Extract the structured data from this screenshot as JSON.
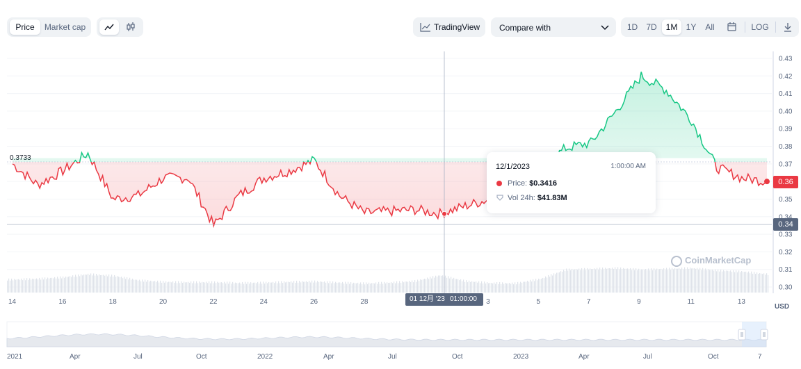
{
  "toolbar": {
    "price_tab": "Price",
    "market_cap_tab": "Market cap",
    "line_chart_icon": "line-chart-icon",
    "candlestick_icon": "candlestick-icon",
    "tradingview_label": "TradingView",
    "compare_label": "Compare with",
    "ranges": [
      "1D",
      "7D",
      "1M",
      "1Y",
      "All"
    ],
    "active_range": "1M",
    "log_label": "LOG"
  },
  "chart": {
    "currency_label": "USD",
    "reference_price": "0.3733",
    "current_price_tag": "0.36",
    "crosshair_price_tag": "0.34",
    "y_ticks": [
      "0.43",
      "0.42",
      "0.41",
      "0.40",
      "0.39",
      "0.38",
      "0.37",
      "0.36",
      "0.35",
      "0.34",
      "0.33",
      "0.32",
      "0.31",
      "0.30"
    ],
    "x_ticks": [
      "14",
      "16",
      "18",
      "20",
      "22",
      "24",
      "26",
      "28",
      "3",
      "5",
      "7",
      "9",
      "11",
      "13"
    ],
    "crosshair_date": "01 12月 '23",
    "crosshair_time": "01:00:00",
    "watermark": "CoinMarketCap",
    "colors": {
      "up": "#16c784",
      "down": "#ea3943",
      "axis": "#58667e"
    }
  },
  "tooltip": {
    "date": "12/1/2023",
    "time": "1:00:00 AM",
    "price_label": "Price:",
    "price_value": "$0.3416",
    "volume_label": "Vol 24h:",
    "volume_value": "$41.83M"
  },
  "navigator": {
    "labels": [
      "2021",
      "Apr",
      "Jul",
      "Oct",
      "2022",
      "Apr",
      "Jul",
      "Oct",
      "2023",
      "Apr",
      "Jul",
      "Oct",
      "7"
    ]
  },
  "chart_data": {
    "type": "line",
    "ylim": [
      0.3,
      0.43
    ],
    "reference_value": 0.3733,
    "x": [
      "11/14",
      "11/15",
      "11/16",
      "11/17",
      "11/18",
      "11/19",
      "11/20",
      "11/21",
      "11/22",
      "11/23",
      "11/24",
      "11/25",
      "11/26",
      "11/27",
      "11/28",
      "11/29",
      "11/30",
      "12/1",
      "12/2",
      "12/3",
      "12/4",
      "12/5",
      "12/6",
      "12/7",
      "12/8",
      "12/9",
      "12/10",
      "12/11",
      "12/12",
      "12/13",
      "12/14"
    ],
    "series": [
      {
        "values": [
          0.37,
          0.358,
          0.366,
          0.376,
          0.35,
          0.352,
          0.362,
          0.362,
          0.335,
          0.352,
          0.362,
          0.366,
          0.372,
          0.352,
          0.342,
          0.343,
          0.344,
          0.3416,
          0.346,
          0.35,
          0.356,
          0.368,
          0.379,
          0.382,
          0.4,
          0.42,
          0.412,
          0.395,
          0.368,
          0.362,
          0.36
        ]
      }
    ],
    "volume_relative": [
      0.34,
      0.36,
      0.4,
      0.48,
      0.44,
      0.32,
      0.28,
      0.27,
      0.27,
      0.25,
      0.26,
      0.28,
      0.29,
      0.26,
      0.24,
      0.26,
      0.3,
      0.45,
      0.3,
      0.25,
      0.24,
      0.36,
      0.6,
      0.62,
      0.64,
      0.6,
      0.62,
      0.64,
      0.58,
      0.55,
      0.48
    ]
  }
}
